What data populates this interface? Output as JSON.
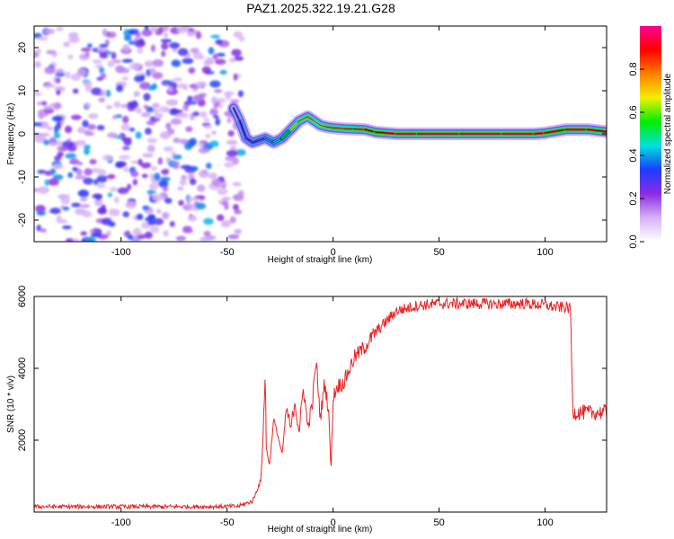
{
  "title": "PAZ1.2025.322.19.21.G28",
  "colors": {
    "snr_line": "#ee2222",
    "track_low": "#7a1fe6",
    "track_core": "#e82048",
    "noise": "#8a3cf0",
    "axis": "#000000"
  },
  "chart_data": [
    {
      "type": "heatmap",
      "name": "spectrogram",
      "xlabel": "Height of straight line (km)",
      "ylabel": "Frequency (Hz)",
      "xlim": [
        -141,
        129
      ],
      "ylim": [
        -25,
        25
      ],
      "xticks": [
        -100,
        -50,
        0,
        50,
        100
      ],
      "yticks": [
        -20,
        -10,
        0,
        10,
        20
      ],
      "colorbar": {
        "label": "Normalized spectral amplitude",
        "range": [
          0,
          1
        ],
        "ticks": [
          0.0,
          0.2,
          0.4,
          0.6,
          0.8
        ],
        "tick_labels": [
          "0.0",
          "0.2",
          "0.4",
          "0.6",
          "0.8"
        ],
        "colormap": [
          "#ffffff",
          "#d6b2f6",
          "#8b2be2",
          "#1e3cff",
          "#00e0e0",
          "#00ee00",
          "#f0f000",
          "#ff8000",
          "#ff0000",
          "#ff0090"
        ]
      },
      "noise_region_x": [
        -141,
        -45
      ],
      "ridge": {
        "x": [
          -47,
          -44,
          -41,
          -38,
          -35,
          -32,
          -28,
          -24,
          -20,
          -16,
          -12,
          -9,
          -6,
          -3,
          0,
          5,
          10,
          15,
          20,
          30,
          40,
          60,
          80,
          95,
          100,
          110,
          120,
          129
        ],
        "freq": [
          6,
          3,
          -1,
          -2,
          -1.5,
          -1,
          -2,
          -1,
          1,
          3,
          4,
          3,
          2,
          1.6,
          1.4,
          1.2,
          1.1,
          1,
          0.4,
          0,
          0,
          0,
          0,
          0,
          0.2,
          1,
          1,
          0.5
        ],
        "amplitude": [
          0.2,
          0.28,
          0.35,
          0.35,
          0.35,
          0.4,
          0.42,
          0.5,
          0.62,
          0.72,
          0.8,
          0.75,
          0.72,
          0.8,
          0.8,
          0.82,
          0.82,
          0.85,
          0.92,
          0.95,
          0.95,
          0.95,
          0.95,
          0.95,
          0.9,
          0.95,
          0.92,
          0.85
        ]
      }
    },
    {
      "type": "line",
      "name": "snr",
      "xlabel": "Height of straight line (km)",
      "ylabel": "SNR (10 * v/v)",
      "xlim": [
        -141,
        129
      ],
      "ylim": [
        0,
        6000
      ],
      "xticks": [
        -100,
        -50,
        0,
        50,
        100
      ],
      "yticks": [
        2000,
        4000,
        6000
      ],
      "series": [
        {
          "name": "SNR",
          "x": [
            -141,
            -120,
            -100,
            -80,
            -60,
            -45,
            -38,
            -36,
            -34,
            -33,
            -32,
            -31.5,
            -30,
            -28,
            -26,
            -24,
            -22,
            -20,
            -18,
            -16,
            -14,
            -12,
            -10,
            -8,
            -6,
            -4,
            -2,
            -1,
            0,
            2,
            5,
            10,
            15,
            20,
            25,
            30,
            40,
            50,
            60,
            70,
            80,
            90,
            100,
            105,
            110,
            112,
            113,
            115,
            120,
            129
          ],
          "y": [
            150,
            150,
            150,
            150,
            150,
            160,
            300,
            600,
            900,
            2200,
            3900,
            1800,
            1300,
            2600,
            2100,
            1600,
            2900,
            2300,
            3100,
            2200,
            3500,
            2400,
            2900,
            4200,
            2600,
            3600,
            2800,
            1100,
            3200,
            3500,
            3600,
            4300,
            4600,
            5000,
            5300,
            5600,
            5750,
            5800,
            5800,
            5800,
            5790,
            5800,
            5760,
            5700,
            5700,
            5650,
            2780,
            2780,
            2760,
            2780
          ]
        }
      ]
    }
  ]
}
